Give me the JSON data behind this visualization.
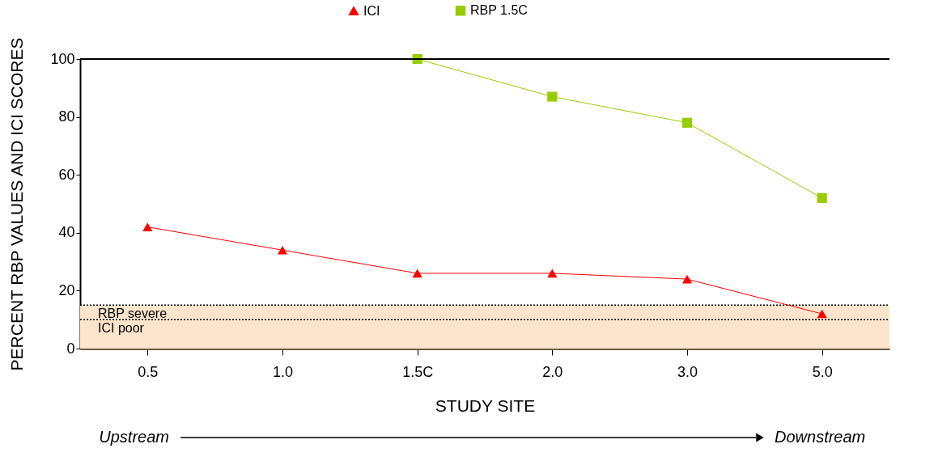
{
  "chart_data": {
    "type": "line",
    "categories": [
      "0.5",
      "1.0",
      "1.5C",
      "2.0",
      "3.0",
      "5.0"
    ],
    "series": [
      {
        "name": "ICI",
        "color": "#ff0000",
        "marker": "triangle",
        "values": [
          42,
          34,
          26,
          26,
          24,
          12
        ]
      },
      {
        "name": "RBP 1.5C",
        "color": "#99cc00",
        "marker": "square",
        "values": [
          null,
          null,
          100,
          87,
          78,
          52
        ]
      }
    ],
    "xlabel": "STUDY SITE",
    "ylabel": "PERCENT RBP VALUES AND ICI SCORES",
    "ylim": [
      0,
      100
    ],
    "yticks": [
      0,
      20,
      40,
      60,
      80,
      100
    ],
    "bands": [
      {
        "axis": "y",
        "from": 0,
        "to": 15,
        "color": "#fde4cc"
      }
    ],
    "ref_lines": [
      {
        "axis": "y",
        "value": 15,
        "label": "RBP severe",
        "line_style": "dotted",
        "color": "#000000"
      },
      {
        "axis": "y",
        "value": 10,
        "label": "ICI poor",
        "line_style": "dotted",
        "color": "#000000"
      }
    ],
    "annotations": [
      "Upstream",
      "Downstream"
    ],
    "legend": "top",
    "grid": false,
    "line_style": "solid"
  }
}
